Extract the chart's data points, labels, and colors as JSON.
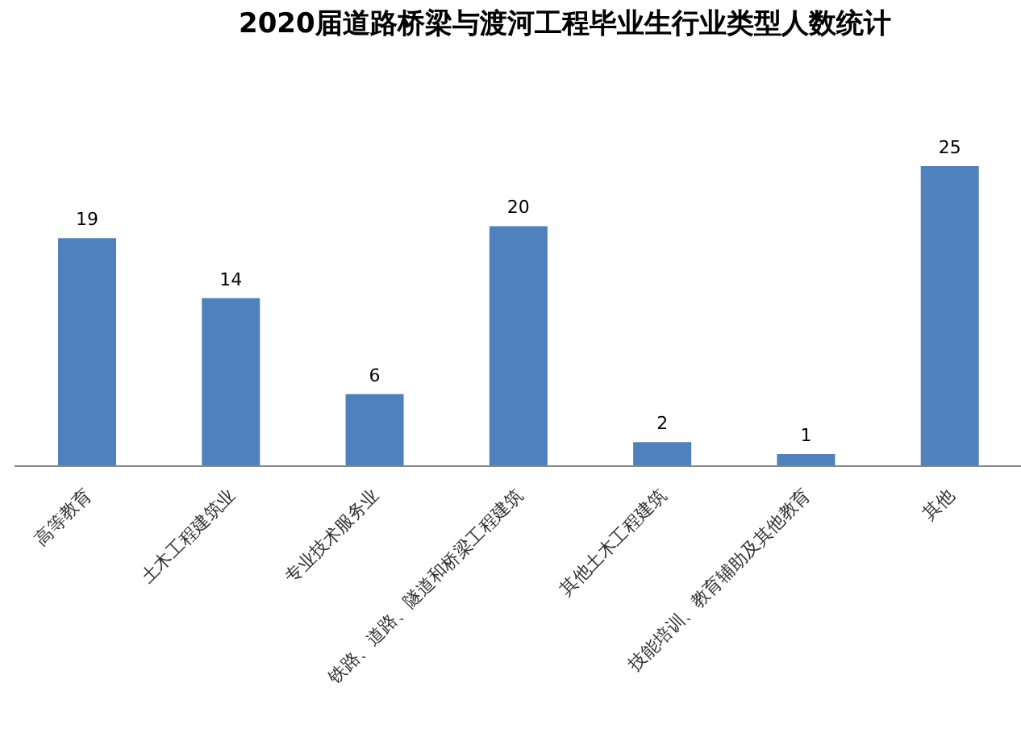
{
  "chart_data": {
    "type": "bar",
    "title": "2020届道路桥梁与渡河工程毕业生行业类型人数统计",
    "categories": [
      "高等教育",
      "土木工程建筑业",
      "专业技术服务业",
      "铁路、道路、隧道和桥梁工程建筑",
      "其他土木工程建筑",
      "技能培训、教育辅助及其他教育",
      "其他"
    ],
    "values": [
      19,
      14,
      6,
      20,
      2,
      1,
      25
    ],
    "color": "#4f81bd",
    "data_labels": true
  }
}
